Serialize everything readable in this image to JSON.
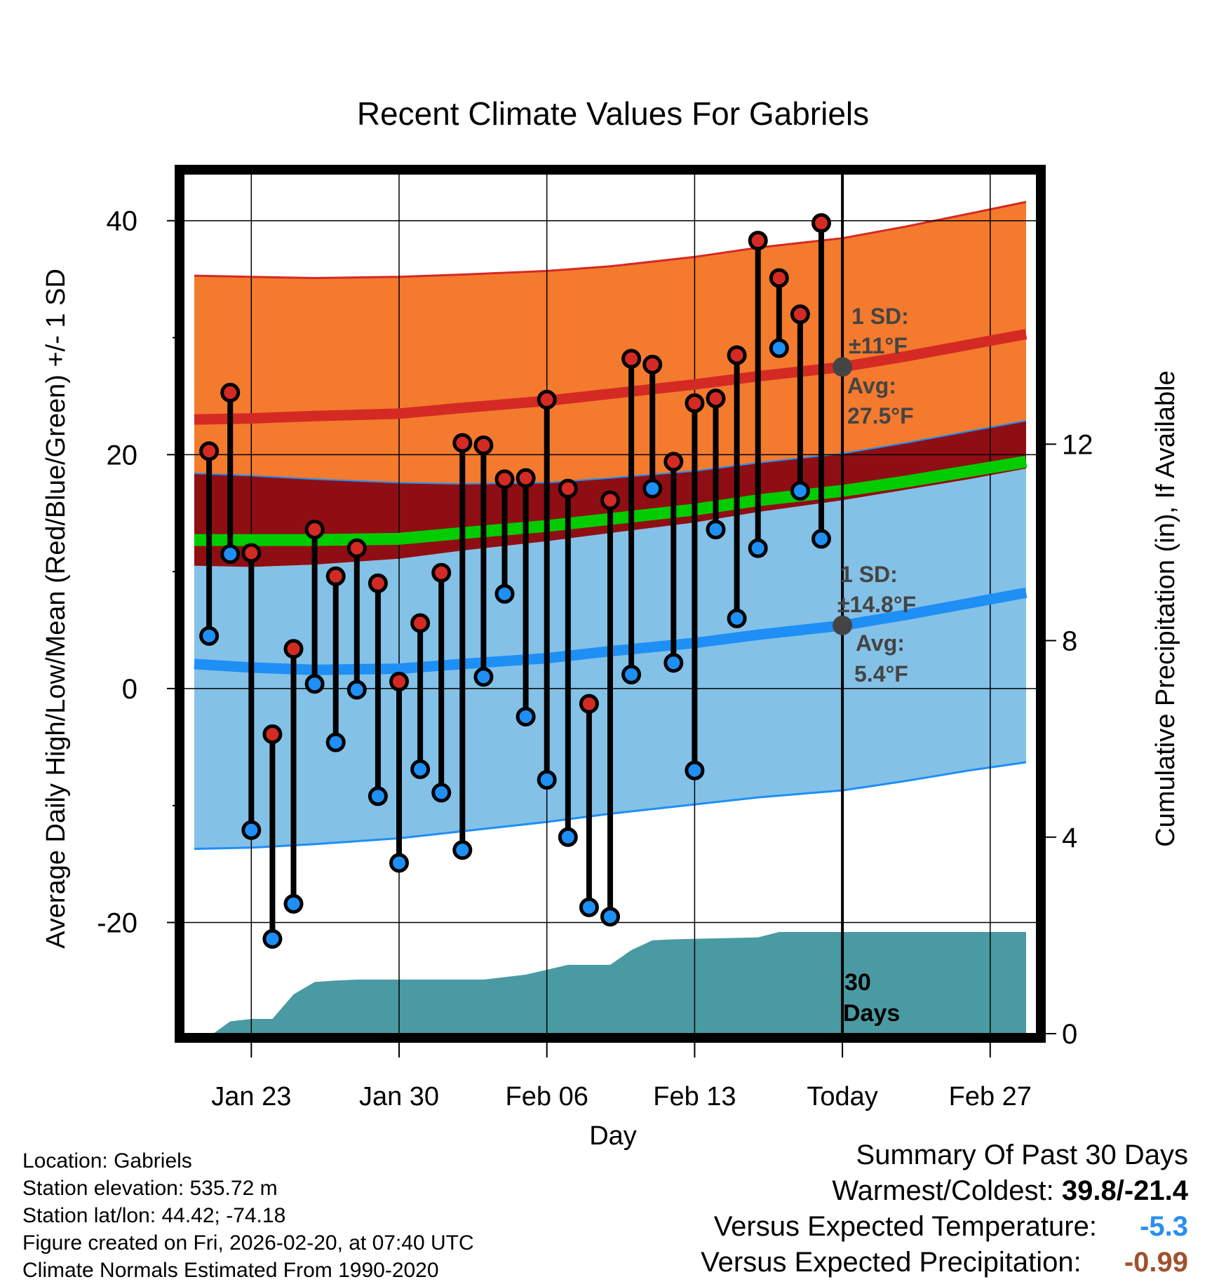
{
  "chart_data": {
    "type": "line",
    "title": "Recent Climate Values For Gabriels",
    "xlabel": "Day",
    "ylabel_left": "Average Daily High/Low/Mean (Red/Blue/Green) +/- 1 SD",
    "ylabel_right": "Cumulative Precipitation (in), If Available",
    "xlim": [
      -3.2,
      37.2
    ],
    "ylim": [
      -29.5,
      44
    ],
    "y2lim": [
      0,
      17.5
    ],
    "x_ticks": [
      {
        "x": 0,
        "label": "Jan 23"
      },
      {
        "x": 7,
        "label": "Jan 30"
      },
      {
        "x": 14,
        "label": "Feb 06"
      },
      {
        "x": 21,
        "label": "Feb 13"
      },
      {
        "x": 28,
        "label": "Today"
      },
      {
        "x": 35,
        "label": "Feb 27"
      }
    ],
    "y_ticks_left": [
      -20,
      0,
      20,
      40
    ],
    "y_minor_left": [
      -10,
      10,
      30
    ],
    "y_ticks_right": [
      0,
      4,
      8,
      12
    ],
    "today_x": 28,
    "normals": {
      "x": [
        -2.7,
        0,
        3,
        7,
        10,
        14,
        17,
        21,
        24,
        28,
        31,
        34,
        36.7
      ],
      "high_mean": [
        23.0,
        23.1,
        23.3,
        23.5,
        24.0,
        24.6,
        25.2,
        26.0,
        26.7,
        27.5,
        28.4,
        29.4,
        30.3
      ],
      "high_upper": [
        35.3,
        35.2,
        35.1,
        35.2,
        35.4,
        35.7,
        36.1,
        36.9,
        37.7,
        38.5,
        39.5,
        40.6,
        41.6
      ],
      "high_lower": [
        18.4,
        18.2,
        17.9,
        17.6,
        17.5,
        17.6,
        18.0,
        18.6,
        19.3,
        20.1,
        21.0,
        22.0,
        22.9
      ],
      "mean": [
        12.7,
        12.7,
        12.7,
        12.8,
        13.3,
        13.9,
        14.5,
        15.3,
        16.1,
        16.9,
        17.7,
        18.6,
        19.4
      ],
      "low_mean": [
        2.1,
        1.8,
        1.6,
        1.7,
        2.1,
        2.6,
        3.2,
        3.9,
        4.6,
        5.4,
        6.3,
        7.3,
        8.2
      ],
      "low_upper": [
        10.5,
        10.4,
        10.6,
        11.1,
        11.8,
        12.6,
        13.3,
        14.2,
        15.1,
        16.1,
        17.0,
        17.9,
        18.8
      ],
      "low_lower": [
        -13.7,
        -13.6,
        -13.3,
        -12.8,
        -12.2,
        -11.4,
        -10.7,
        -9.9,
        -9.3,
        -8.7,
        -7.9,
        -7.0,
        -6.3
      ]
    },
    "series": [
      {
        "name": "Daily High",
        "x": [
          -2,
          -1,
          0,
          1,
          2,
          3,
          4,
          5,
          6,
          7,
          8,
          9,
          10,
          11,
          12,
          13,
          14,
          15,
          16,
          17,
          18,
          19,
          20,
          21,
          22,
          23,
          24,
          25,
          26,
          27
        ],
        "values": [
          20.3,
          25.3,
          11.6,
          -3.9,
          3.4,
          13.6,
          9.6,
          12.0,
          9.0,
          0.6,
          5.6,
          9.9,
          21.0,
          20.8,
          17.9,
          18.0,
          24.7,
          17.1,
          -1.3,
          16.1,
          28.2,
          27.7,
          19.4,
          24.4,
          24.8,
          28.5,
          38.3,
          35.1,
          32.0,
          39.8
        ]
      },
      {
        "name": "Daily Low",
        "x": [
          -2,
          -1,
          0,
          1,
          2,
          3,
          4,
          5,
          6,
          7,
          8,
          9,
          10,
          11,
          12,
          13,
          14,
          15,
          16,
          17,
          18,
          19,
          20,
          21,
          22,
          23,
          24,
          25,
          26,
          27
        ],
        "values": [
          4.5,
          11.5,
          -12.1,
          -21.4,
          -18.4,
          0.4,
          -4.6,
          -0.1,
          -9.2,
          -14.9,
          -6.9,
          -8.9,
          -13.8,
          1.0,
          8.1,
          -2.4,
          -7.8,
          -12.7,
          -18.7,
          -19.5,
          1.2,
          17.1,
          2.2,
          -7.0,
          13.6,
          6.0,
          12.0,
          29.1,
          16.9,
          12.8
        ]
      }
    ],
    "precip_cumulative": {
      "x": [
        -1.8,
        -1.0,
        0,
        1.0,
        2.0,
        3.0,
        4.0,
        5.0,
        7.0,
        9.0,
        11.0,
        12.0,
        13.0,
        14.0,
        15.0,
        16.0,
        17.0,
        18.0,
        19.0,
        20.0,
        22.0,
        24.0,
        25.0,
        28.0,
        30.0,
        36.7
      ],
      "values": [
        0,
        0.25,
        0.3,
        0.3,
        0.8,
        1.05,
        1.08,
        1.1,
        1.1,
        1.1,
        1.1,
        1.15,
        1.2,
        1.3,
        1.4,
        1.4,
        1.4,
        1.7,
        1.9,
        1.92,
        1.94,
        1.96,
        2.07,
        2.07,
        2.07,
        2.07
      ]
    },
    "annotations": {
      "high_sd": "1 SD:",
      "high_sd_value": "±11°F",
      "high_avg": "Avg:",
      "high_avg_value": "27.5°F",
      "high_avg_point": 27.5,
      "low_sd": "1 SD:",
      "low_sd_value": "±14.8°F",
      "low_avg": "Avg:",
      "low_avg_value": "5.4°F",
      "low_avg_point": 5.4,
      "days_line1": "30",
      "days_line2": "Days"
    },
    "colors": {
      "high_band": "#f47a2e",
      "overlap_band": "#8f0e14",
      "low_band": "#84c1e7",
      "mean_line": "#00cc00",
      "high_line": "#d42a24",
      "low_line": "#1e8ff5",
      "precip": "#4a9aa3",
      "high_dot": "#d42a24",
      "low_dot": "#1e8ff5",
      "avg_dot": "#444444",
      "annotation": "#444444"
    }
  },
  "info": {
    "location": "Location: Gabriels",
    "elevation": "Station elevation: 535.72 m",
    "latlon": "Station lat/lon: 44.42; -74.18",
    "created": "Figure created on Fri, 2026-02-20, at 07:40 UTC",
    "normals": "Climate Normals Estimated From 1990-2020"
  },
  "summary": {
    "title": "Summary Of Past 30 Days",
    "warmest_label": "Warmest/Coldest:",
    "warmest_value": "39.8/-21.4",
    "temp_label": "Versus Expected Temperature:",
    "temp_value": "-5.3",
    "temp_color": "#2a8ef0",
    "precip_label": "Versus Expected Precipitation:",
    "precip_value": "-0.99",
    "precip_color": "#a0522d"
  }
}
